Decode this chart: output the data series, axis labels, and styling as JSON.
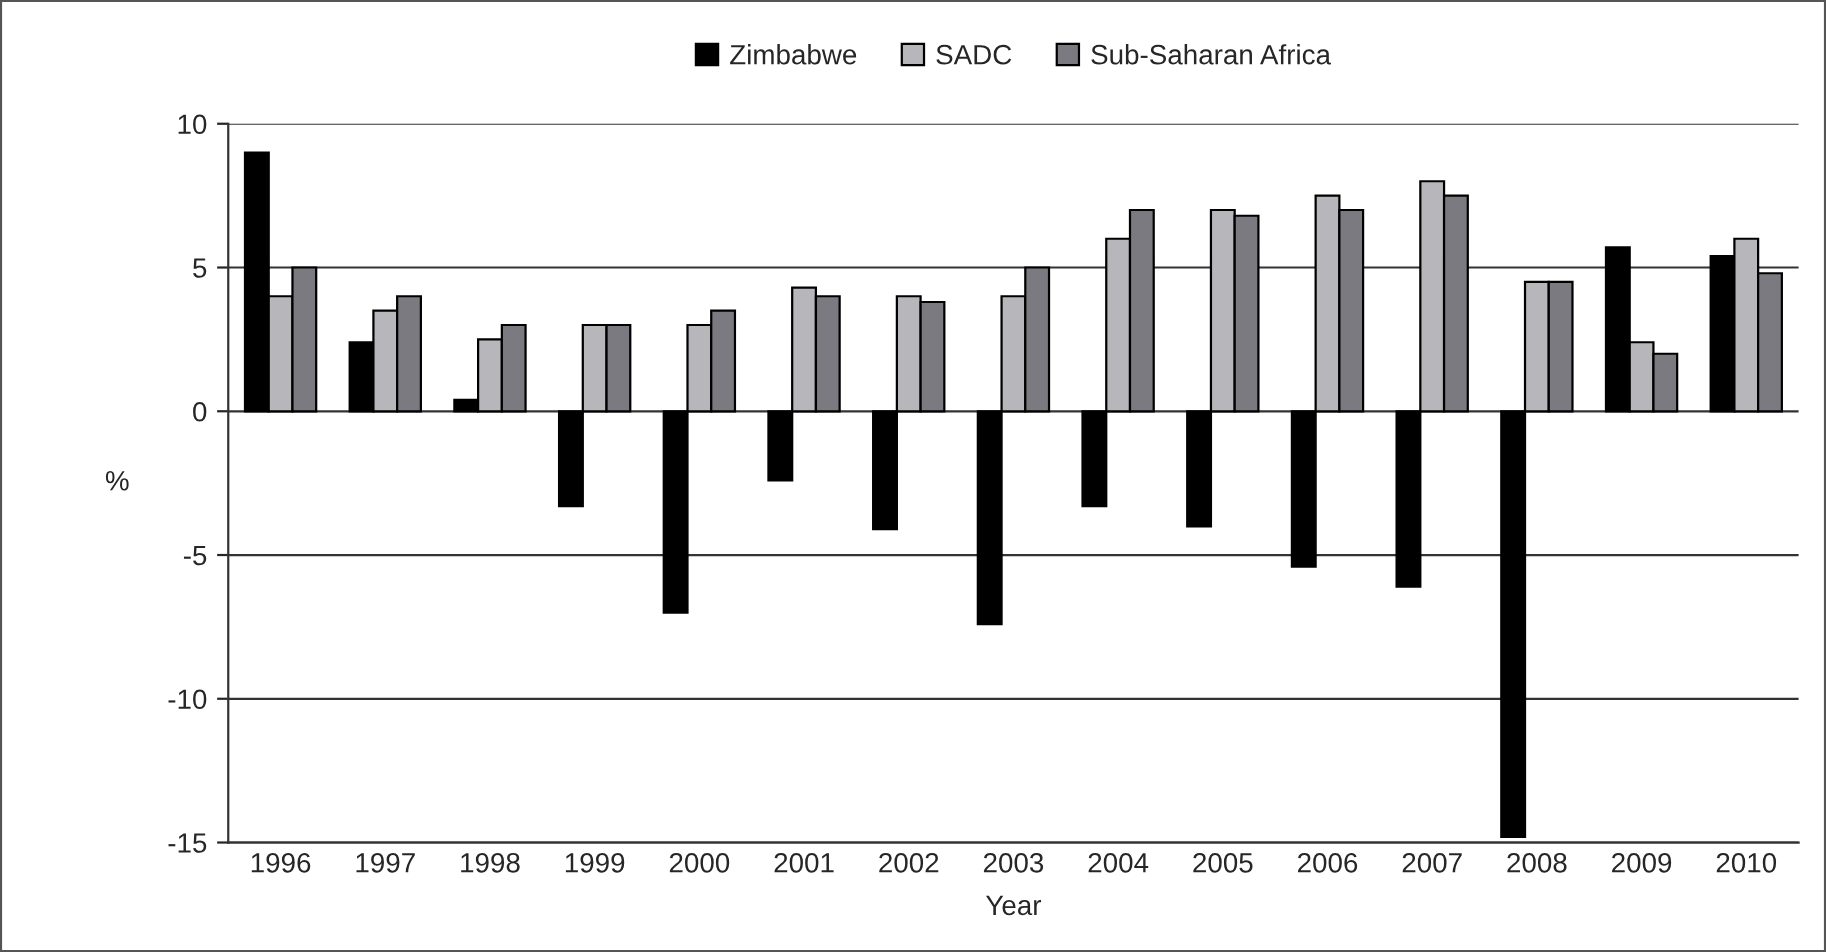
{
  "chart_data": {
    "type": "bar",
    "xlabel": "Year",
    "ylabel": "%",
    "categories": [
      "1996",
      "1997",
      "1998",
      "1999",
      "2000",
      "2001",
      "2002",
      "2003",
      "2004",
      "2005",
      "2006",
      "2007",
      "2008",
      "2009",
      "2010"
    ],
    "series": [
      {
        "name": "Zimbabwe",
        "color": "#000000",
        "values": [
          9,
          2.4,
          0.4,
          -3.3,
          -7,
          -2.4,
          -4.1,
          -7.4,
          -3.3,
          -4,
          -5.4,
          -6.1,
          -14.8,
          5.7,
          5.4
        ]
      },
      {
        "name": "SADC",
        "color": "#b7b7bb",
        "values": [
          4,
          3.5,
          2.5,
          3,
          3,
          4.3,
          4,
          4,
          6,
          7,
          7.5,
          8,
          4.5,
          2.4,
          6
        ]
      },
      {
        "name": "Sub-Saharan Africa",
        "color": "#7a7a80",
        "values": [
          5,
          4,
          3,
          3,
          3.5,
          4,
          3.8,
          5,
          7,
          6.8,
          7,
          7.5,
          4.5,
          2,
          4.8
        ]
      }
    ],
    "ylim": [
      -15,
      10
    ],
    "yticks": [
      -15,
      -10,
      -5,
      0,
      5,
      10
    ],
    "grid": "y",
    "legend": "top"
  }
}
